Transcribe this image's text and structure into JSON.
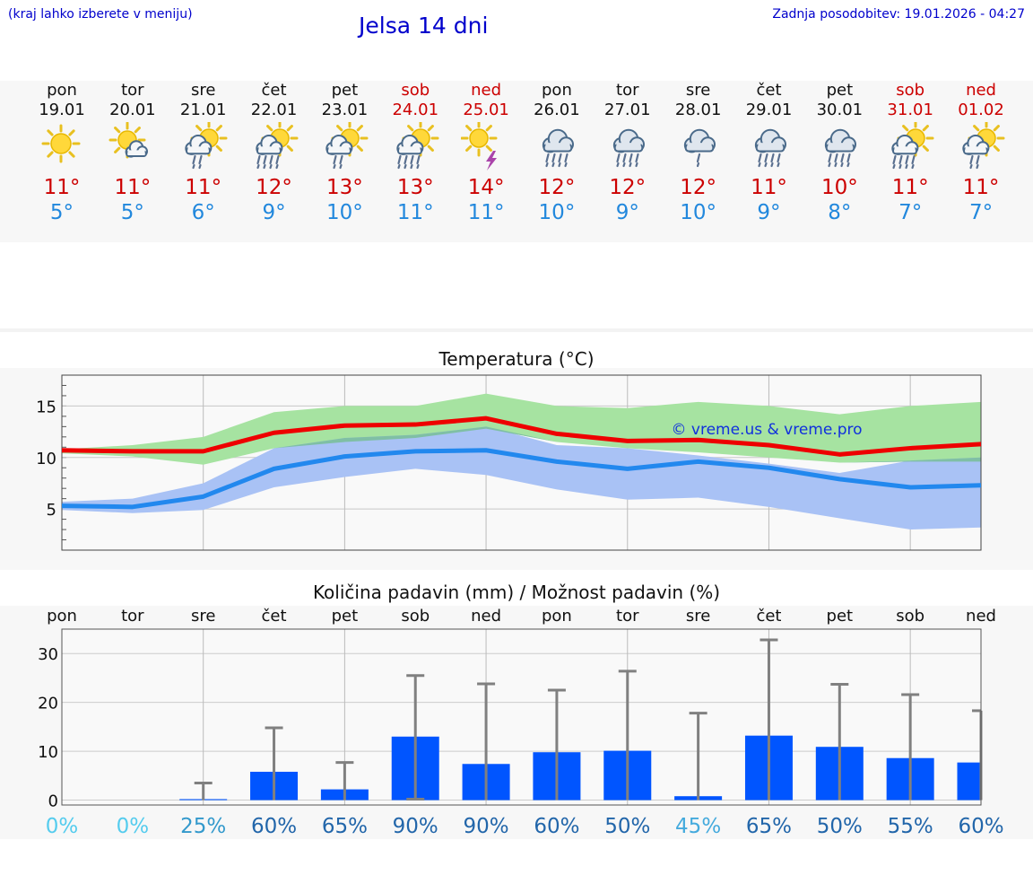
{
  "header": {
    "note": "(kraj lahko izberete v meniju)",
    "title": "Jelsa 14 dni",
    "updated": "Zadnja posodobitev: 19.01.2026 - 04:27"
  },
  "days": [
    {
      "name": "pon",
      "date": "19.01",
      "weekend": false,
      "icon": "sunny-icon",
      "tmax": "11°",
      "tmin": "5°"
    },
    {
      "name": "tor",
      "date": "20.01",
      "weekend": false,
      "icon": "sun-cloud-icon",
      "tmax": "11°",
      "tmin": "5°"
    },
    {
      "name": "sre",
      "date": "21.01",
      "weekend": false,
      "icon": "sun-cloud-rain-icon",
      "tmax": "11°",
      "tmin": "6°"
    },
    {
      "name": "čet",
      "date": "22.01",
      "weekend": false,
      "icon": "sun-cloud-heavy-rain-icon",
      "tmax": "12°",
      "tmin": "9°"
    },
    {
      "name": "pet",
      "date": "23.01",
      "weekend": false,
      "icon": "sun-cloud-rain-icon",
      "tmax": "13°",
      "tmin": "10°"
    },
    {
      "name": "sob",
      "date": "24.01",
      "weekend": true,
      "icon": "sun-cloud-heavy-rain-icon",
      "tmax": "13°",
      "tmin": "11°"
    },
    {
      "name": "ned",
      "date": "25.01",
      "weekend": true,
      "icon": "sun-thunder-icon",
      "tmax": "14°",
      "tmin": "11°"
    },
    {
      "name": "pon",
      "date": "26.01",
      "weekend": false,
      "icon": "cloud-heavy-rain-icon",
      "tmax": "12°",
      "tmin": "10°"
    },
    {
      "name": "tor",
      "date": "27.01",
      "weekend": false,
      "icon": "cloud-heavy-rain-icon",
      "tmax": "12°",
      "tmin": "9°"
    },
    {
      "name": "sre",
      "date": "28.01",
      "weekend": false,
      "icon": "cloud-rain-icon",
      "tmax": "12°",
      "tmin": "10°"
    },
    {
      "name": "čet",
      "date": "29.01",
      "weekend": false,
      "icon": "cloud-heavy-rain-icon",
      "tmax": "11°",
      "tmin": "9°"
    },
    {
      "name": "pet",
      "date": "30.01",
      "weekend": false,
      "icon": "cloud-heavy-rain-icon",
      "tmax": "10°",
      "tmin": "8°"
    },
    {
      "name": "sob",
      "date": "31.01",
      "weekend": true,
      "icon": "sun-cloud-heavy-rain-icon",
      "tmax": "11°",
      "tmin": "7°"
    },
    {
      "name": "ned",
      "date": "01.02",
      "weekend": true,
      "icon": "sun-cloud-rain-icon",
      "tmax": "11°",
      "tmin": "7°"
    }
  ],
  "colors": {
    "max_line": "#ee0000",
    "min_line": "#2288ee",
    "max_band": "#a6e3a1",
    "min_band": "#a9c2f5",
    "overlap_band": "#7fbfa5",
    "bar": "#0055ff",
    "whisker": "#808080",
    "title_blue": "#0000cc"
  },
  "chart_data": [
    {
      "type": "line",
      "title": "Temperatura (°C)",
      "watermark": "© vreme.us & vreme.pro",
      "x": [
        0,
        1,
        2,
        3,
        4,
        5,
        6,
        7,
        8,
        9,
        10,
        11,
        12,
        13
      ],
      "ylim": [
        1,
        18
      ],
      "yticks": [
        5,
        10,
        15
      ],
      "series": [
        {
          "name": "max",
          "values": [
            10.7,
            10.6,
            10.6,
            12.4,
            13.1,
            13.2,
            13.8,
            12.3,
            11.6,
            11.7,
            11.2,
            10.3,
            10.9,
            11.3
          ],
          "band_low": [
            10.4,
            10.1,
            9.3,
            10.9,
            11.5,
            11.9,
            12.8,
            11.5,
            10.9,
            10.5,
            10.0,
            9.5,
            9.6,
            9.6
          ],
          "band_high": [
            10.8,
            11.2,
            12.0,
            14.4,
            15.0,
            15.0,
            16.2,
            15.0,
            14.8,
            15.4,
            15.0,
            14.2,
            15.0,
            15.4
          ]
        },
        {
          "name": "min",
          "values": [
            5.3,
            5.2,
            6.2,
            8.9,
            10.1,
            10.6,
            10.7,
            9.6,
            8.9,
            9.6,
            9.0,
            7.9,
            7.1,
            7.3
          ],
          "band_low": [
            4.9,
            4.6,
            4.9,
            7.1,
            8.1,
            8.9,
            8.3,
            6.9,
            5.9,
            6.1,
            5.2,
            4.1,
            3.0,
            3.2
          ],
          "band_high": [
            5.7,
            6.0,
            7.5,
            10.9,
            11.9,
            12.2,
            13.0,
            11.2,
            10.9,
            10.2,
            9.4,
            8.5,
            9.7,
            10.0
          ]
        }
      ]
    },
    {
      "type": "bar",
      "title": "Količina padavin (mm) / Možnost padavin (%)",
      "categories": [
        "pon",
        "tor",
        "sre",
        "čet",
        "pet",
        "sob",
        "ned",
        "pon",
        "tor",
        "sre",
        "čet",
        "pet",
        "sob",
        "ned"
      ],
      "values": [
        0,
        0,
        0.2,
        5.8,
        2.2,
        13.0,
        7.4,
        9.8,
        10.1,
        0.8,
        13.2,
        10.9,
        8.6,
        7.7
      ],
      "whisker_low": [
        0,
        0,
        0,
        0,
        0,
        0.2,
        0,
        0,
        0,
        0,
        0,
        0,
        0,
        0
      ],
      "whisker_high": [
        0,
        0,
        3.5,
        14.8,
        7.7,
        25.5,
        23.8,
        22.5,
        26.4,
        17.8,
        32.8,
        23.7,
        21.6,
        18.3
      ],
      "ylim": [
        -1,
        35
      ],
      "yticks": [
        0,
        10,
        20,
        30
      ],
      "probabilities": [
        "0%",
        "0%",
        "25%",
        "60%",
        "65%",
        "90%",
        "90%",
        "60%",
        "50%",
        "45%",
        "65%",
        "50%",
        "55%",
        "60%"
      ],
      "prob_colors": [
        "#55ccee",
        "#55ccee",
        "#3399cc",
        "#2266aa",
        "#2266aa",
        "#2266aa",
        "#2266aa",
        "#2266aa",
        "#2266aa",
        "#44aadd",
        "#2266aa",
        "#2266aa",
        "#2266aa",
        "#2266aa"
      ]
    }
  ]
}
